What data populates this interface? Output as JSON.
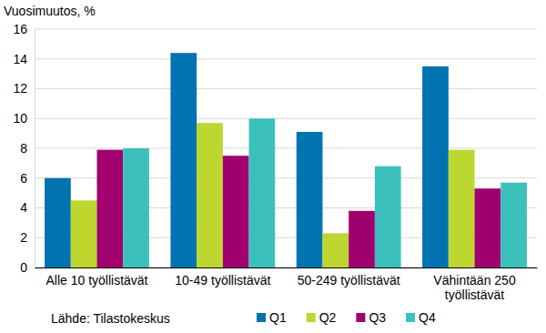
{
  "chart_data": {
    "type": "bar",
    "ylabel": "Vuosimuutos, %",
    "annotations": [
      "Lähde: Tilastokeskus"
    ],
    "categories": [
      "Alle 10 työllistävät",
      "10-49 työllistävät",
      "50-249 työllistävät",
      "Vähintään 250 työllistävät"
    ],
    "series": [
      {
        "name": "Q1",
        "color": "#0073b0",
        "values": [
          6.0,
          14.4,
          9.1,
          13.5
        ]
      },
      {
        "name": "Q2",
        "color": "#bed630",
        "values": [
          4.5,
          9.7,
          2.3,
          7.9
        ]
      },
      {
        "name": "Q3",
        "color": "#a0006e",
        "values": [
          7.9,
          7.5,
          3.8,
          5.3
        ]
      },
      {
        "name": "Q4",
        "color": "#3cc0bc",
        "values": [
          8.0,
          10.0,
          6.8,
          5.7
        ]
      }
    ],
    "ylim": [
      0,
      16
    ],
    "yticks": [
      0,
      2,
      4,
      6,
      8,
      10,
      12,
      14,
      16
    ],
    "grid": true,
    "legend": "bottom"
  }
}
